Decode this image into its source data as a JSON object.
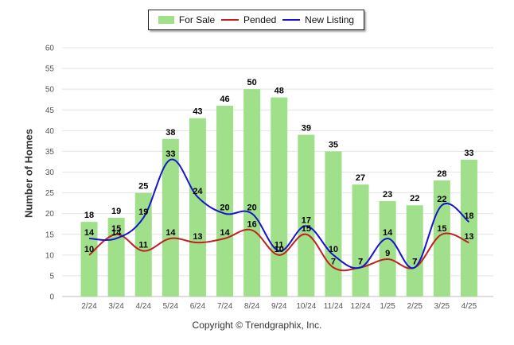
{
  "legend": {
    "for_sale": "For Sale",
    "pended": "Pended",
    "new_listing": "New Listing"
  },
  "copyright": "Copyright © Trendgraphix, Inc.",
  "colors": {
    "bar": "#a0e08a",
    "pended": "#c0201e",
    "new_listing": "#1515d0",
    "grid": "#e4e4e4",
    "axis_text": "#555555"
  },
  "chart_data": {
    "type": "bar",
    "categories": [
      "2/24",
      "3/24",
      "4/24",
      "5/24",
      "6/24",
      "7/24",
      "8/24",
      "9/24",
      "10/24",
      "11/24",
      "12/24",
      "1/25",
      "2/25",
      "3/25",
      "4/25"
    ],
    "series": [
      {
        "name": "For Sale",
        "type": "bar",
        "values": [
          18,
          19,
          25,
          38,
          43,
          46,
          50,
          48,
          39,
          35,
          27,
          23,
          22,
          28,
          33
        ]
      },
      {
        "name": "Pended",
        "type": "line",
        "values": [
          10,
          15,
          11,
          14,
          13,
          14,
          16,
          10,
          15,
          7,
          7,
          9,
          7,
          15,
          13
        ]
      },
      {
        "name": "New Listing",
        "type": "line",
        "values": [
          14,
          14,
          19,
          33,
          24,
          20,
          20,
          11,
          17,
          10,
          7,
          14,
          7,
          22,
          18
        ]
      }
    ],
    "ylabel": "Number of Homes",
    "xlabel": "",
    "ylim": [
      0,
      60
    ],
    "yticks": [
      0,
      5,
      10,
      15,
      20,
      25,
      30,
      35,
      40,
      45,
      50,
      55,
      60
    ],
    "grid": true,
    "legend_position": "top-center"
  }
}
